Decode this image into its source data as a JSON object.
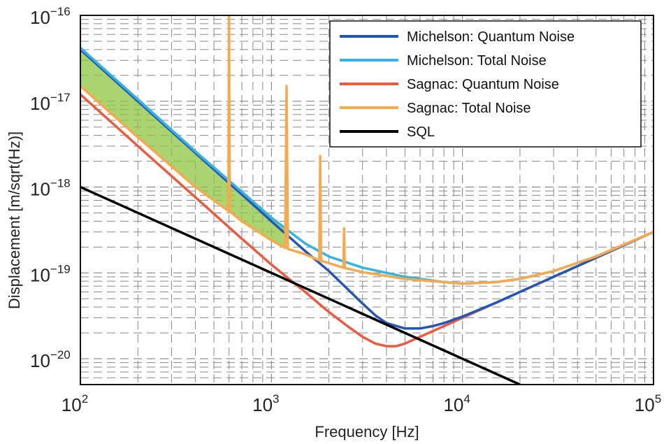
{
  "chart_data": {
    "type": "line",
    "xlabel": "Frequency [Hz]",
    "ylabel": "Displacement [m/sqrt(Hz)]",
    "xscale": "log",
    "yscale": "log",
    "xlim": [
      100,
      100000
    ],
    "ylim": [
      5e-21,
      1e-16
    ],
    "grid": true,
    "legend_position": "top-right",
    "x_ticks": [
      {
        "value": 100,
        "base": "10",
        "exp": "2"
      },
      {
        "value": 1000,
        "base": "10",
        "exp": "3"
      },
      {
        "value": 10000,
        "base": "10",
        "exp": "4"
      },
      {
        "value": 100000,
        "base": "10",
        "exp": "5"
      }
    ],
    "y_ticks": [
      {
        "value": 1e-16,
        "base": "10",
        "exp": "−16"
      },
      {
        "value": 1e-17,
        "base": "10",
        "exp": "−17"
      },
      {
        "value": 1e-18,
        "base": "10",
        "exp": "−18"
      },
      {
        "value": 1e-19,
        "base": "10",
        "exp": "−19"
      },
      {
        "value": 1e-20,
        "base": "10",
        "exp": "−20"
      }
    ],
    "shaded_region": {
      "between": [
        "Michelson: Total Noise",
        "Sagnac: Total Noise"
      ],
      "x_range": [
        100,
        1200
      ],
      "color": "#8cc63f"
    },
    "series": [
      {
        "name": "Michelson: Quantum Noise",
        "color": "#2456b8",
        "points": [
          [
            100,
            4e-17
          ],
          [
            200,
            1e-17
          ],
          [
            400,
            2.5e-18
          ],
          [
            700,
            8.2e-19
          ],
          [
            1000,
            4e-19
          ],
          [
            1500,
            1.8e-19
          ],
          [
            2000,
            1.05e-19
          ],
          [
            2500,
            6.5e-20
          ],
          [
            3000,
            4.4e-20
          ],
          [
            3500,
            3.2e-20
          ],
          [
            4000,
            2.6e-20
          ],
          [
            5000,
            2.25e-20
          ],
          [
            6000,
            2.25e-20
          ],
          [
            7000,
            2.4e-20
          ],
          [
            8000,
            2.6e-20
          ],
          [
            10000,
            3.1e-20
          ],
          [
            15000,
            4.5e-20
          ],
          [
            20000,
            6e-20
          ],
          [
            30000,
            9e-20
          ],
          [
            50000,
            1.5e-19
          ],
          [
            100000,
            3e-19
          ]
        ]
      },
      {
        "name": "Michelson: Total Noise",
        "color": "#34b3e4",
        "points": [
          [
            100,
            4.2e-17
          ],
          [
            200,
            1.05e-17
          ],
          [
            400,
            2.6e-18
          ],
          [
            700,
            8.8e-19
          ],
          [
            1000,
            4.4e-19
          ],
          [
            1500,
            2.2e-19
          ],
          [
            2000,
            1.55e-19
          ],
          [
            3000,
            1.15e-19
          ],
          [
            5000,
            9e-20
          ],
          [
            8000,
            7.8e-20
          ],
          [
            10000,
            7.5e-20
          ],
          [
            15000,
            7.8e-20
          ],
          [
            20000,
            8.5e-20
          ],
          [
            30000,
            1.05e-19
          ],
          [
            50000,
            1.55e-19
          ],
          [
            100000,
            3e-19
          ]
        ]
      },
      {
        "name": "Sagnac: Quantum Noise",
        "color": "#ec5b3f",
        "points": [
          [
            100,
            1.2e-17
          ],
          [
            200,
            3e-18
          ],
          [
            400,
            7.6e-19
          ],
          [
            700,
            2.5e-19
          ],
          [
            1000,
            1.25e-19
          ],
          [
            1500,
            6e-20
          ],
          [
            2000,
            3.5e-20
          ],
          [
            2500,
            2.4e-20
          ],
          [
            3000,
            1.8e-20
          ],
          [
            3500,
            1.5e-20
          ],
          [
            4000,
            1.4e-20
          ],
          [
            4500,
            1.4e-20
          ],
          [
            5000,
            1.5e-20
          ],
          [
            6000,
            1.8e-20
          ],
          [
            8000,
            2.4e-20
          ],
          [
            10000,
            3e-20
          ],
          [
            15000,
            4.5e-20
          ],
          [
            20000,
            6e-20
          ],
          [
            30000,
            9e-20
          ],
          [
            50000,
            1.5e-19
          ],
          [
            100000,
            3e-19
          ]
        ]
      },
      {
        "name": "Sagnac: Total Noise",
        "color": "#f7a94b",
        "points": [
          [
            100,
            1.5e-17
          ],
          [
            200,
            3.8e-18
          ],
          [
            400,
            1e-18
          ],
          [
            580,
            5.5e-19
          ],
          [
            595,
            5.3e-19
          ],
          [
            600,
            1.1e-16
          ],
          [
            605,
            5.2e-19
          ],
          [
            700,
            4e-19
          ],
          [
            1000,
            2.4e-19
          ],
          [
            1180,
            1.95e-19
          ],
          [
            1200,
            1.5e-17
          ],
          [
            1220,
            1.9e-19
          ],
          [
            1500,
            1.65e-19
          ],
          [
            1780,
            1.4e-19
          ],
          [
            1800,
            2.3e-18
          ],
          [
            1820,
            1.38e-19
          ],
          [
            2000,
            1.3e-19
          ],
          [
            2380,
            1.15e-19
          ],
          [
            2400,
            3.3e-19
          ],
          [
            2420,
            1.14e-19
          ],
          [
            3000,
            1.02e-19
          ],
          [
            5000,
            8.5e-20
          ],
          [
            8000,
            7.8e-20
          ],
          [
            10000,
            7.5e-20
          ],
          [
            15000,
            7.8e-20
          ],
          [
            20000,
            8.5e-20
          ],
          [
            30000,
            1.05e-19
          ],
          [
            50000,
            1.55e-19
          ],
          [
            100000,
            3e-19
          ]
        ]
      },
      {
        "name": "SQL",
        "color": "#000000",
        "points": [
          [
            100,
            1e-18
          ],
          [
            20000,
            5e-21
          ]
        ]
      }
    ]
  }
}
